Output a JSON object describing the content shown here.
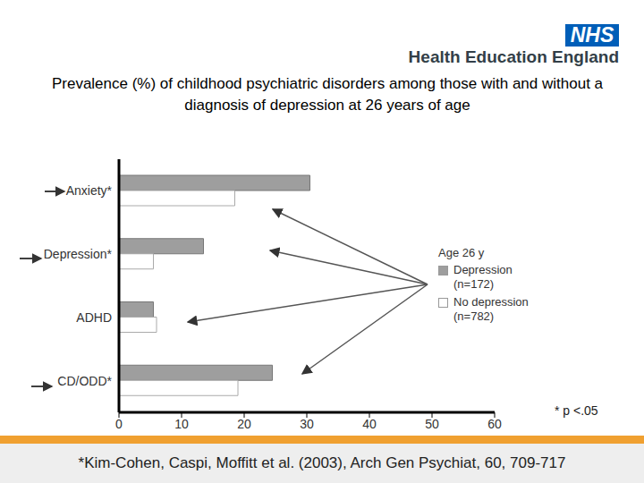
{
  "header": {
    "logo": "NHS",
    "organisation": "Health Education England"
  },
  "chart_data": {
    "type": "bar",
    "orientation": "horizontal",
    "title": "Prevalence (%) of childhood psychiatric disorders among those with and without a diagnosis of depression at 26 years of age",
    "categories": [
      "Anxiety*",
      "Depression*",
      "ADHD",
      "CD/ODD*"
    ],
    "series": [
      {
        "name": "Depression (n=172)",
        "color": "#9e9e9e",
        "values": [
          30.5,
          13.5,
          5.5,
          24.5
        ]
      },
      {
        "name": "No depression (n=782)",
        "color": "#ffffff",
        "values": [
          18.5,
          5.5,
          6,
          19
        ]
      }
    ],
    "xlim": [
      0,
      60
    ],
    "xticks": [
      0,
      10,
      20,
      30,
      40,
      50,
      60
    ],
    "grid": false,
    "legend": "right",
    "legend_title": "Age 26 y",
    "annotations": [
      "* p <.05"
    ]
  },
  "footer": "*Kim-Cohen, Caspi, Moffitt et al. (2003), Arch Gen Psychiat, 60, 709-717"
}
